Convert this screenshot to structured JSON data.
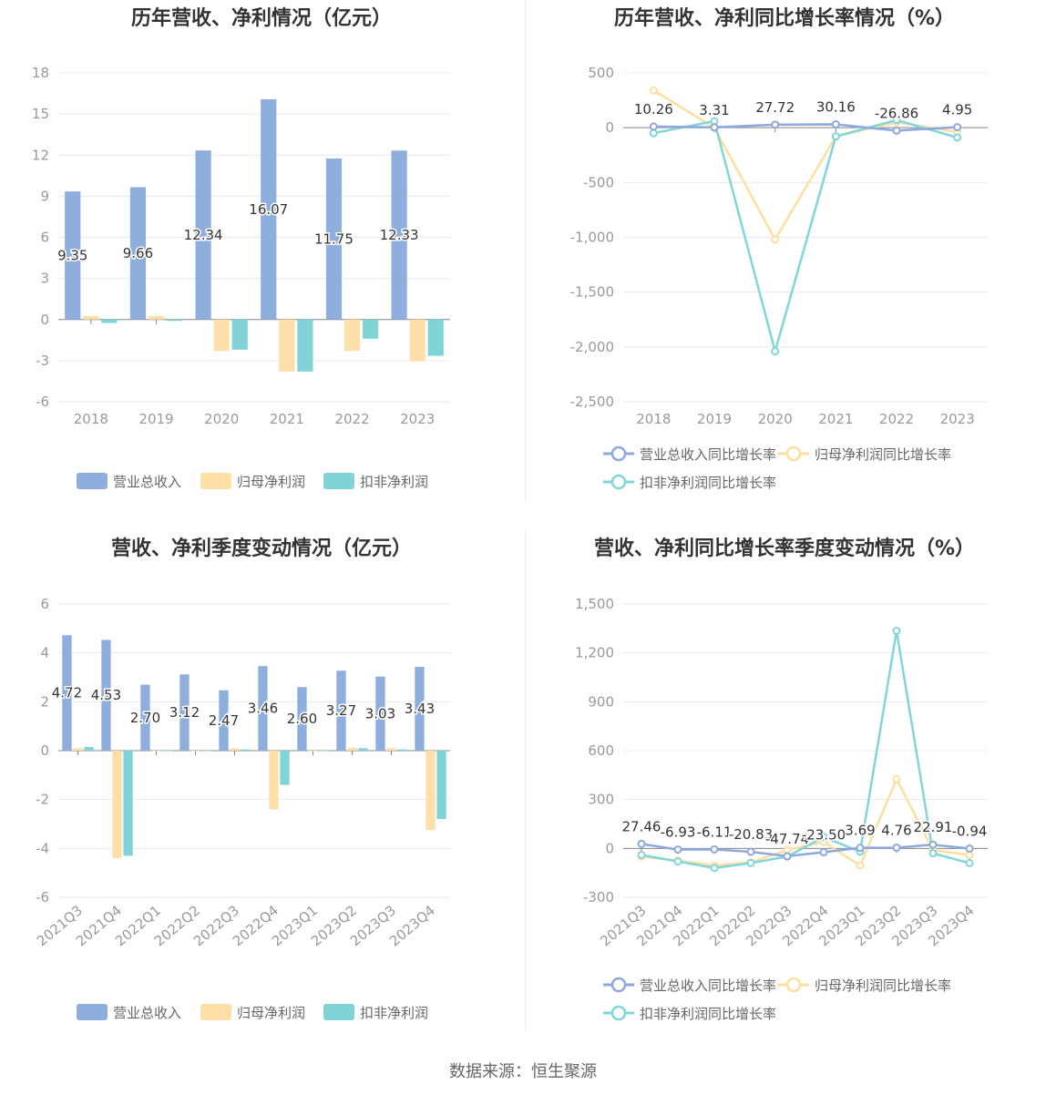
{
  "source": "数据来源：恒生聚源",
  "colors": {
    "revenue": "#8eaedd",
    "parent_profit": "#ffdfa8",
    "deducted_profit": "#80d4d8",
    "revenue_line": "#8da8dc",
    "parent_line": "#ffdf9f",
    "deducted_line": "#80d6d8"
  },
  "chart_data": [
    {
      "type": "bar",
      "title": "历年营收、净利情况（亿元）",
      "categories": [
        "2018",
        "2019",
        "2020",
        "2021",
        "2022",
        "2023"
      ],
      "series": [
        {
          "name": "营业总收入",
          "values": [
            9.35,
            9.66,
            12.34,
            16.07,
            11.75,
            12.33
          ],
          "labels": [
            "9.35",
            "9.66",
            "12.34",
            "16.07",
            "11.75",
            "12.33"
          ]
        },
        {
          "name": "归母净利润",
          "values": [
            0.25,
            0.25,
            -2.3,
            -3.8,
            -2.3,
            -3.05
          ]
        },
        {
          "name": "扣非净利润",
          "values": [
            -0.25,
            -0.1,
            -2.2,
            -3.8,
            -1.4,
            -2.65
          ]
        }
      ],
      "yticks": [
        "18",
        "15",
        "12",
        "9",
        "6",
        "3",
        "0",
        "-3",
        "-6"
      ],
      "ylim": [
        -6,
        18
      ],
      "legend": "bottom"
    },
    {
      "type": "line",
      "title": "历年营收、净利同比增长率情况（%）",
      "categories": [
        "2018",
        "2019",
        "2020",
        "2021",
        "2022",
        "2023"
      ],
      "series": [
        {
          "name": "营业总收入同比增长率",
          "values": [
            10.26,
            3.31,
            27.72,
            30.16,
            -26.86,
            4.95
          ],
          "labels": [
            "10.26",
            "3.31",
            "27.72",
            "30.16",
            "-26.86",
            "4.95"
          ]
        },
        {
          "name": "归母净利润同比增长率",
          "values": [
            340,
            0,
            -1020,
            -80,
            50,
            -40
          ]
        },
        {
          "name": "扣非净利润同比增长率",
          "values": [
            -50,
            60,
            -2040,
            -80,
            70,
            -90
          ]
        }
      ],
      "yticks": [
        "500",
        "0",
        "-500",
        "-1,000",
        "-1,500",
        "-2,000",
        "-2,500"
      ],
      "ylim": [
        -2500,
        500
      ],
      "legend": "bottom"
    },
    {
      "type": "bar",
      "title": "营收、净利季度变动情况（亿元）",
      "categories": [
        "2021Q3",
        "2021Q4",
        "2022Q1",
        "2022Q2",
        "2022Q3",
        "2022Q4",
        "2023Q1",
        "2023Q2",
        "2023Q3",
        "2023Q4"
      ],
      "series": [
        {
          "name": "营业总收入",
          "values": [
            4.72,
            4.53,
            2.7,
            3.12,
            2.47,
            3.46,
            2.6,
            3.27,
            3.03,
            3.43
          ],
          "labels": [
            "4.72",
            "4.53",
            "2.70",
            "3.12",
            "2.47",
            "3.46",
            "2.60",
            "3.27",
            "3.03",
            "3.43"
          ]
        },
        {
          "name": "归母净利润",
          "values": [
            0.1,
            -4.4,
            0.0,
            0.0,
            0.1,
            -2.4,
            0.0,
            0.12,
            0.1,
            -3.25
          ]
        },
        {
          "name": "扣非净利润",
          "values": [
            0.15,
            -4.3,
            0.0,
            0.0,
            0.05,
            -1.4,
            0.0,
            0.1,
            0.05,
            -2.8
          ]
        }
      ],
      "yticks": [
        "6",
        "4",
        "2",
        "0",
        "-2",
        "-4",
        "-6"
      ],
      "ylim": [
        -6,
        6
      ],
      "legend": "bottom"
    },
    {
      "type": "line",
      "title": "营收、净利同比增长率季度变动情况（%）",
      "categories": [
        "2021Q3",
        "2021Q4",
        "2022Q1",
        "2022Q2",
        "2022Q3",
        "2022Q4",
        "2023Q1",
        "2023Q2",
        "2023Q3",
        "2023Q4"
      ],
      "series": [
        {
          "name": "营业总收入同比增长率",
          "values": [
            27.46,
            -6.93,
            -6.11,
            -20.83,
            -47.74,
            -23.5,
            3.69,
            4.76,
            22.91,
            -0.94
          ],
          "labels": [
            "27.46",
            "-6.93",
            "-6.11",
            "-20.83",
            "-47.74",
            "-23.50",
            "3.69",
            "4.76",
            "22.91",
            "-0.94"
          ]
        },
        {
          "name": "归母净利润同比增长率",
          "values": [
            -50,
            -75,
            -105,
            -85,
            -10,
            40,
            -105,
            425,
            -10,
            -40
          ]
        },
        {
          "name": "扣非净利润同比增长率",
          "values": [
            -40,
            -80,
            -120,
            -90,
            -50,
            70,
            -20,
            1335,
            -30,
            -90
          ]
        }
      ],
      "yticks": [
        "1,500",
        "1,200",
        "900",
        "600",
        "300",
        "0",
        "-300"
      ],
      "ylim": [
        -300,
        1500
      ],
      "legend": "bottom"
    }
  ]
}
